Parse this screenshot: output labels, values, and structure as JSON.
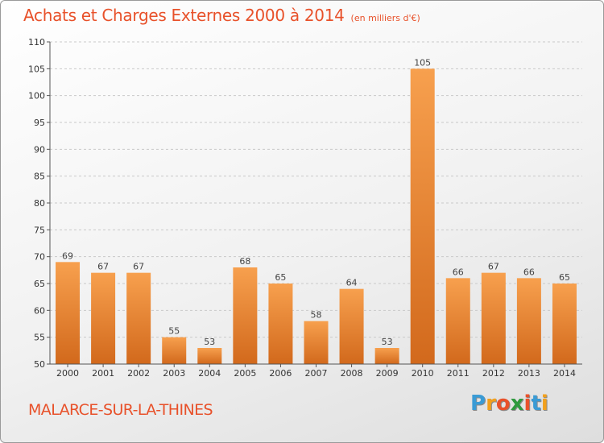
{
  "header": {
    "title": "Achats et Charges Externes 2000 à 2014",
    "subtitle": "(en milliers d'€)"
  },
  "footer": {
    "commune": "MALARCE-SUR-LA-THINES",
    "logo_letters": [
      "P",
      "r",
      "o",
      "x",
      "i",
      "t",
      "i"
    ],
    "logo_colors": [
      "#3a9bd5",
      "#f2a01c",
      "#e8512a",
      "#2e9a3e",
      "#e8512a",
      "#3a9bd5",
      "#f2a01c"
    ]
  },
  "chart_data": {
    "type": "bar",
    "title": "Achats et Charges Externes 2000 à 2014",
    "subtitle": "(en milliers d'€)",
    "categories": [
      "2000",
      "2001",
      "2002",
      "2003",
      "2004",
      "2005",
      "2006",
      "2007",
      "2008",
      "2009",
      "2010",
      "2011",
      "2012",
      "2013",
      "2014"
    ],
    "values": [
      69,
      67,
      67,
      55,
      53,
      68,
      65,
      58,
      64,
      53,
      105,
      66,
      67,
      66,
      65
    ],
    "ylim": [
      50,
      110
    ],
    "yticks": [
      "50",
      "55",
      "60",
      "65",
      "70",
      "75",
      "80",
      "85",
      "90",
      "95",
      "100",
      "105",
      "110"
    ],
    "grid": true,
    "bar_color_top": "#f7a04e",
    "bar_color_bottom": "#d2691c"
  }
}
